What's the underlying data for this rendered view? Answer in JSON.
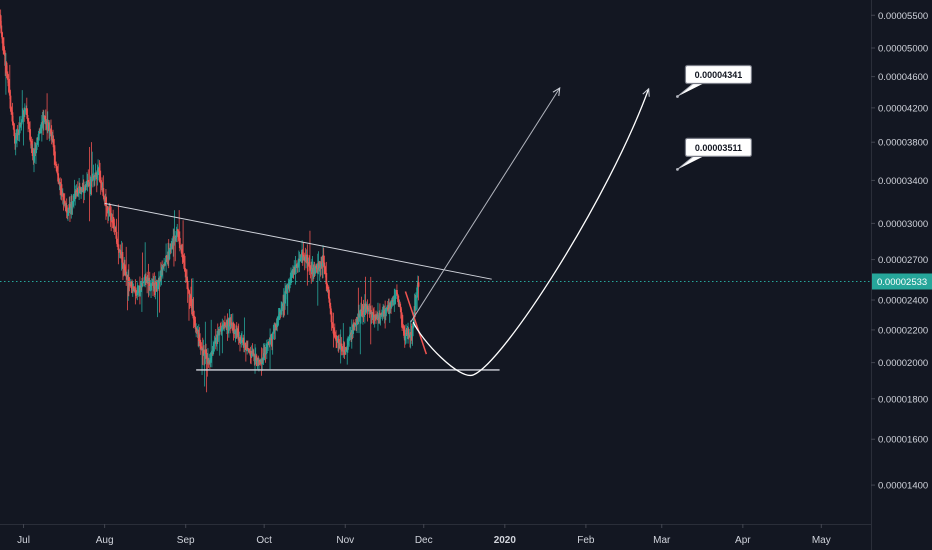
{
  "chart_data": {
    "type": "candlestick",
    "y_scale": "log",
    "ylim": [
      1.25e-05,
      5.75e-05
    ],
    "xlim": [
      "2019-06-22",
      "2020-05-20"
    ],
    "grid": false,
    "x_ticks": [
      {
        "date": "2019-07-01",
        "label": "Jul"
      },
      {
        "date": "2019-08-01",
        "label": "Aug"
      },
      {
        "date": "2019-09-01",
        "label": "Sep"
      },
      {
        "date": "2019-10-01",
        "label": "Oct"
      },
      {
        "date": "2019-11-01",
        "label": "Nov"
      },
      {
        "date": "2019-12-01",
        "label": "Dec"
      },
      {
        "date": "2020-01-01",
        "label": "2020",
        "bold": true
      },
      {
        "date": "2020-02-01",
        "label": "Feb"
      },
      {
        "date": "2020-03-01",
        "label": "Mar"
      },
      {
        "date": "2020-04-01",
        "label": "Apr"
      },
      {
        "date": "2020-05-01",
        "label": "May"
      }
    ],
    "y_ticks": [
      {
        "value": 5.5e-05,
        "label": "0.00005500"
      },
      {
        "value": 5e-05,
        "label": "0.00005000"
      },
      {
        "value": 4.6e-05,
        "label": "0.00004600"
      },
      {
        "value": 4.2e-05,
        "label": "0.00004200"
      },
      {
        "value": 3.8e-05,
        "label": "0.00003800"
      },
      {
        "value": 3.4e-05,
        "label": "0.00003400"
      },
      {
        "value": 3e-05,
        "label": "0.00003000"
      },
      {
        "value": 2.7e-05,
        "label": "0.00002700"
      },
      {
        "value": 2.4e-05,
        "label": "0.00002400"
      },
      {
        "value": 2.2e-05,
        "label": "0.00002200"
      },
      {
        "value": 2e-05,
        "label": "0.00002000"
      },
      {
        "value": 1.8e-05,
        "label": "0.00001800"
      },
      {
        "value": 1.6e-05,
        "label": "0.00001600"
      },
      {
        "value": 1.4e-05,
        "label": "0.00001400"
      }
    ],
    "current_price": {
      "value": 2.533e-05,
      "label": "0.00002533"
    },
    "price_path": [
      [
        "2019-06-22",
        5.5e-05
      ],
      [
        "2019-06-25",
        4.6e-05
      ],
      [
        "2019-06-28",
        3.8e-05
      ],
      [
        "2019-07-02",
        4.2e-05
      ],
      [
        "2019-07-05",
        3.65e-05
      ],
      [
        "2019-07-09",
        4.1e-05
      ],
      [
        "2019-07-12",
        3.85e-05
      ],
      [
        "2019-07-15",
        3.35e-05
      ],
      [
        "2019-07-18",
        3.1e-05
      ],
      [
        "2019-07-22",
        3.3e-05
      ],
      [
        "2019-07-26",
        3.35e-05
      ],
      [
        "2019-07-30",
        3.5e-05
      ],
      [
        "2019-08-01",
        3.25e-05
      ],
      [
        "2019-08-05",
        2.95e-05
      ],
      [
        "2019-08-09",
        2.6e-05
      ],
      [
        "2019-08-13",
        2.45e-05
      ],
      [
        "2019-08-17",
        2.55e-05
      ],
      [
        "2019-08-21",
        2.5e-05
      ],
      [
        "2019-08-25",
        2.7e-05
      ],
      [
        "2019-08-29",
        2.95e-05
      ],
      [
        "2019-09-02",
        2.5e-05
      ],
      [
        "2019-09-06",
        2.15e-05
      ],
      [
        "2019-09-10",
        2e-05
      ],
      [
        "2019-09-14",
        2.2e-05
      ],
      [
        "2019-09-18",
        2.25e-05
      ],
      [
        "2019-09-22",
        2.15e-05
      ],
      [
        "2019-09-26",
        2.05e-05
      ],
      [
        "2019-09-30",
        2e-05
      ],
      [
        "2019-10-04",
        2.15e-05
      ],
      [
        "2019-10-08",
        2.35e-05
      ],
      [
        "2019-10-12",
        2.6e-05
      ],
      [
        "2019-10-16",
        2.75e-05
      ],
      [
        "2019-10-20",
        2.6e-05
      ],
      [
        "2019-10-24",
        2.7e-05
      ],
      [
        "2019-10-26",
        2.4e-05
      ],
      [
        "2019-10-28",
        2.15e-05
      ],
      [
        "2019-11-01",
        2.05e-05
      ],
      [
        "2019-11-05",
        2.25e-05
      ],
      [
        "2019-11-09",
        2.35e-05
      ],
      [
        "2019-11-13",
        2.28e-05
      ],
      [
        "2019-11-17",
        2.32e-05
      ],
      [
        "2019-11-21",
        2.45e-05
      ],
      [
        "2019-11-24",
        2.15e-05
      ],
      [
        "2019-11-27",
        2.2e-05
      ],
      [
        "2019-11-29",
        2.533e-05
      ]
    ],
    "annotations": {
      "descending_trendline": [
        [
          "2019-08-01",
          3.18e-05
        ],
        [
          "2019-12-27",
          2.55e-05
        ]
      ],
      "support_line": [
        [
          "2019-09-05",
          1.958e-05
        ],
        [
          "2019-12-30",
          1.958e-05
        ]
      ],
      "arrow_straight": [
        [
          "2019-11-26",
          2.25e-05
        ],
        [
          "2020-01-22",
          4.45e-05
        ]
      ],
      "arrow_curve": [
        [
          "2019-11-27",
          2.25e-05
        ],
        [
          "2019-12-20",
          1.93e-05
        ],
        [
          "2020-02-25",
          4.44e-05
        ]
      ],
      "red_projection": [
        [
          "2019-11-24",
          2.46e-05
        ],
        [
          "2019-12-02",
          2.05e-05
        ]
      ],
      "callouts": [
        {
          "label": "0.00004341",
          "date": "2020-03-07",
          "value": 4.341e-05
        },
        {
          "label": "0.00003511",
          "date": "2020-03-07",
          "value": 3.511e-05
        }
      ]
    }
  }
}
